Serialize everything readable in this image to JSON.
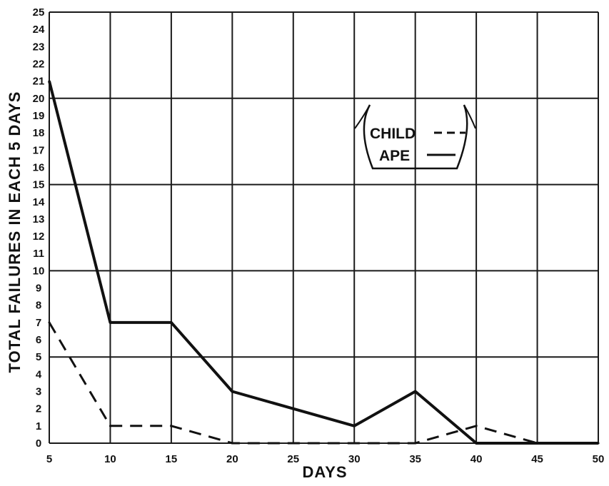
{
  "chart_data": {
    "type": "line",
    "title": "",
    "xlabel": "DAYS",
    "ylabel": "TOTAL FAILURES IN EACH 5 DAYS",
    "xlim": [
      5,
      50
    ],
    "ylim": [
      0,
      25
    ],
    "x_ticks": [
      5,
      10,
      15,
      20,
      25,
      30,
      35,
      40,
      45,
      50
    ],
    "y_ticks": [
      0,
      1,
      2,
      3,
      4,
      5,
      6,
      7,
      8,
      9,
      10,
      11,
      12,
      13,
      14,
      15,
      16,
      17,
      18,
      19,
      20,
      21,
      22,
      23,
      24,
      25
    ],
    "grid": true,
    "legend_position": "top-right",
    "series": [
      {
        "name": "CHILD",
        "line_style": "dashed",
        "color": "#111111",
        "x": [
          5,
          10,
          15,
          20,
          25,
          30,
          35,
          40,
          45,
          50
        ],
        "values": [
          7,
          1,
          1,
          0,
          0,
          0,
          0,
          1,
          0,
          0
        ]
      },
      {
        "name": "APE",
        "line_style": "solid",
        "color": "#111111",
        "x": [
          5,
          10,
          15,
          20,
          25,
          30,
          35,
          40,
          45,
          50
        ],
        "values": [
          21,
          7,
          7,
          3,
          2,
          1,
          3,
          0,
          0,
          0
        ]
      }
    ]
  }
}
